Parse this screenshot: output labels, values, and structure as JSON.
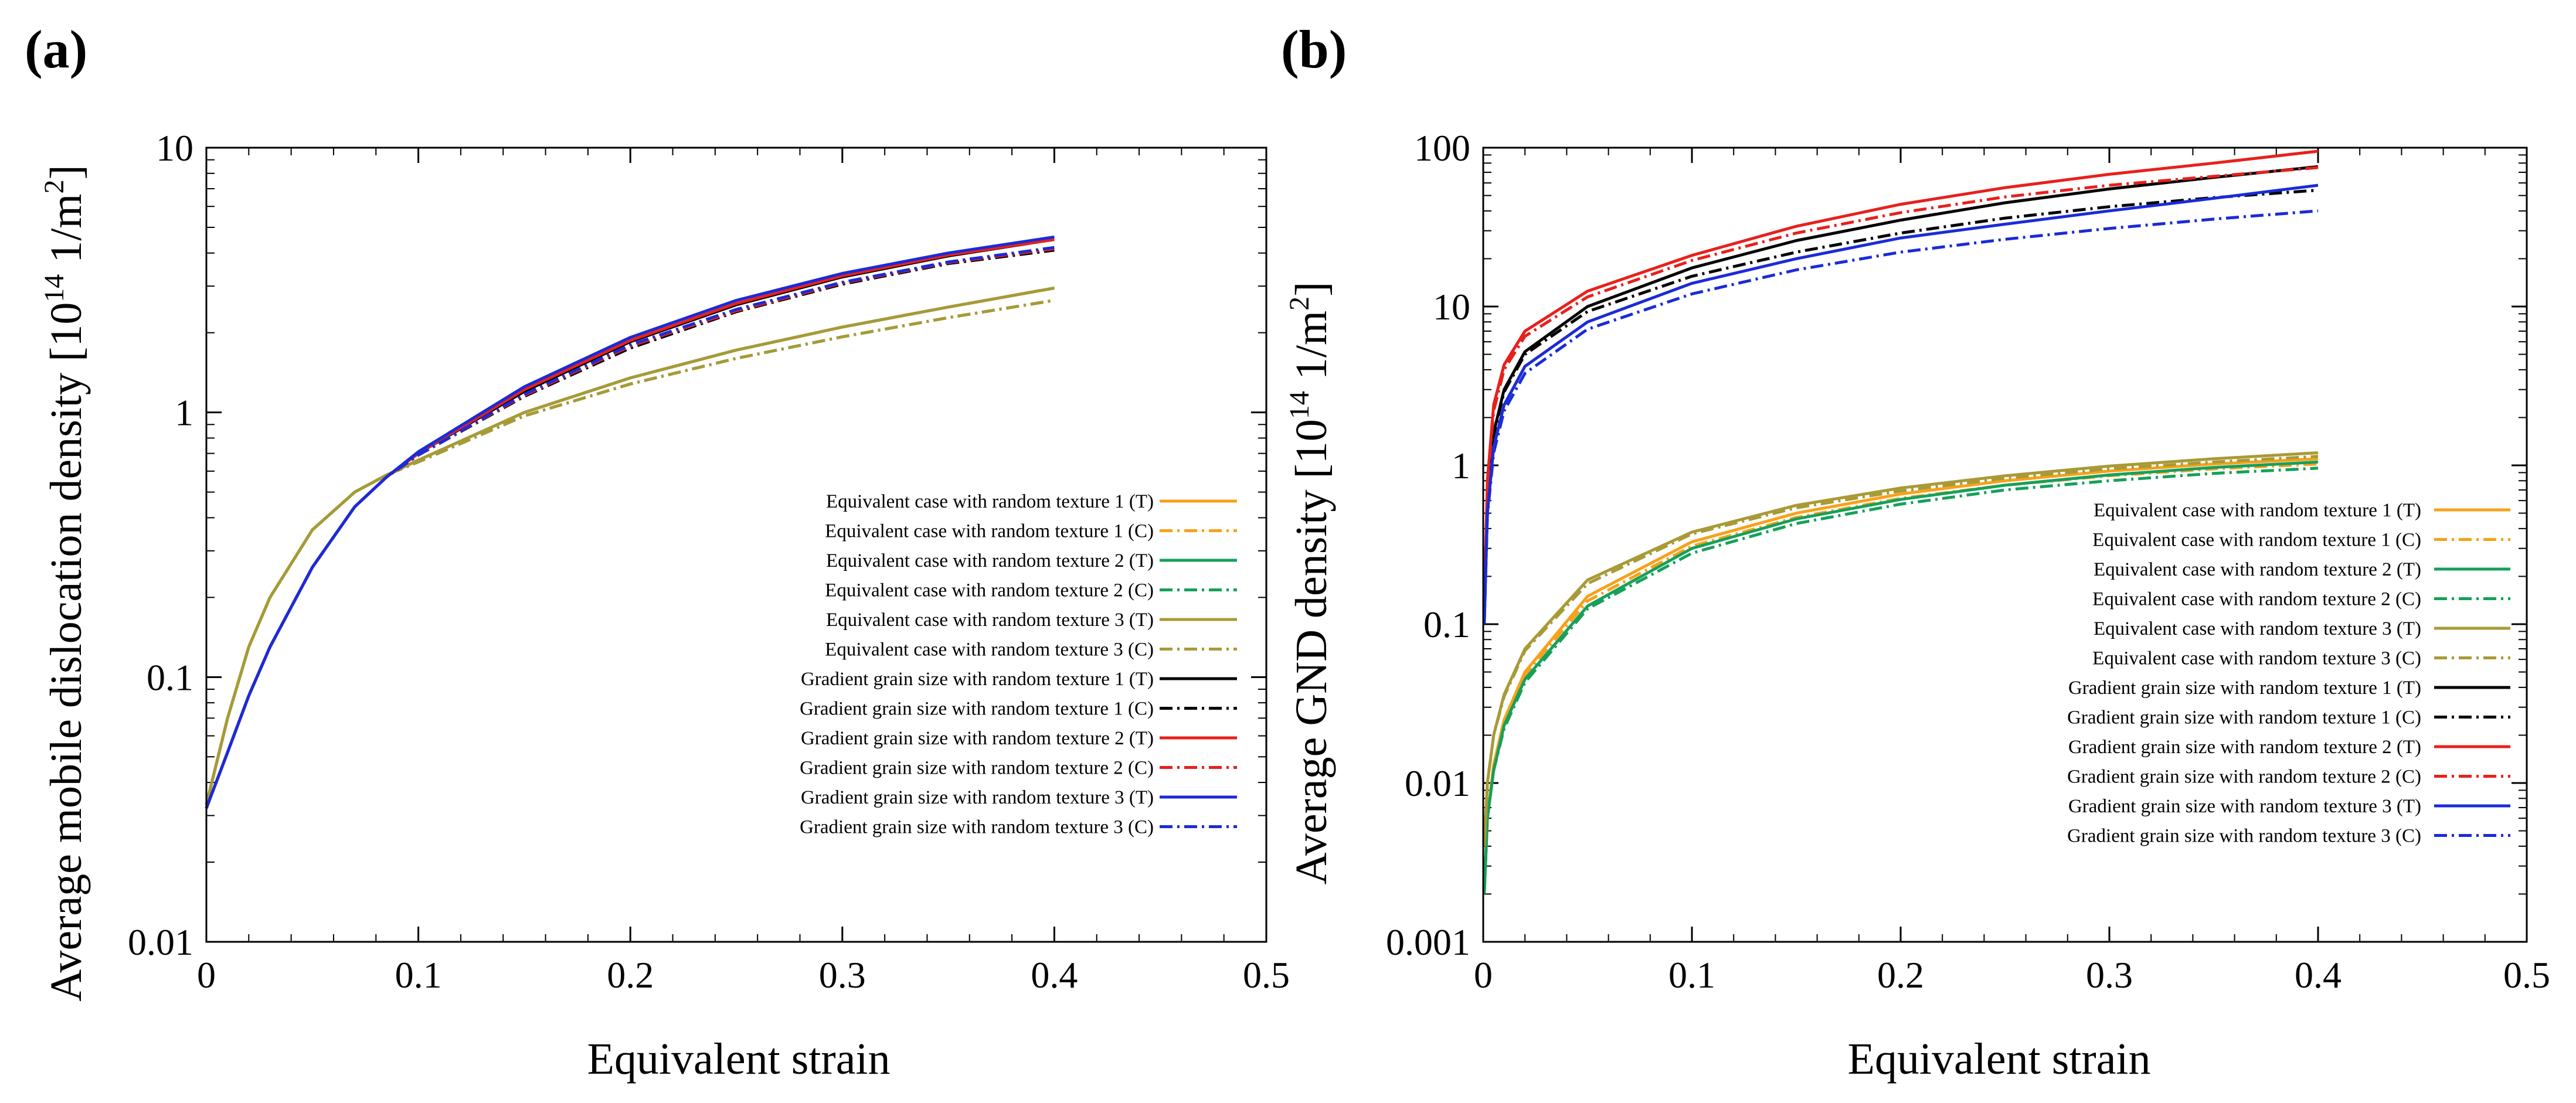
{
  "chart_data": [
    {
      "panel": "(a)",
      "type": "line",
      "title": "",
      "xlabel": "Equivalent strain",
      "ylabel_main": "Average mobile dislocation density [10",
      "ylabel_exp": "14",
      "ylabel_unit": " 1/m",
      "ylabel_sq": "2",
      "ylabel_end": "]",
      "xlim": [
        0,
        0.5
      ],
      "ylim": [
        0.01,
        10
      ],
      "yscale": "log",
      "xticks": [
        "0",
        "0.1",
        "0.2",
        "0.3",
        "0.4",
        "0.5"
      ],
      "yticks": [
        "0.01",
        "0.1",
        "1",
        "10"
      ],
      "legend_position": "bottom-right",
      "x": [
        0,
        0.01,
        0.02,
        0.03,
        0.05,
        0.07,
        0.085,
        0.1,
        0.15,
        0.2,
        0.25,
        0.3,
        0.35,
        0.4
      ],
      "series": [
        {
          "name": "Equivalent case with random texture 1 (T)",
          "color": "#f7a11a",
          "style": "solid",
          "values": [
            0.033,
            0.07,
            0.13,
            0.2,
            0.36,
            0.5,
            0.58,
            0.66,
            1.0,
            1.35,
            1.72,
            2.1,
            2.5,
            2.95
          ]
        },
        {
          "name": "Equivalent case with random texture 1 (C)",
          "color": "#f7a11a",
          "style": "dashdot",
          "values": [
            0.033,
            0.07,
            0.13,
            0.2,
            0.36,
            0.5,
            0.58,
            0.65,
            0.97,
            1.28,
            1.6,
            1.93,
            2.28,
            2.65
          ]
        },
        {
          "name": "Equivalent case with random texture 2 (T)",
          "color": "#16a05a",
          "style": "solid",
          "values": [
            0.033,
            0.07,
            0.13,
            0.2,
            0.36,
            0.5,
            0.58,
            0.66,
            1.0,
            1.35,
            1.72,
            2.1,
            2.5,
            2.95
          ]
        },
        {
          "name": "Equivalent case with random texture 2 (C)",
          "color": "#16a05a",
          "style": "dashdot",
          "values": [
            0.033,
            0.07,
            0.13,
            0.2,
            0.36,
            0.5,
            0.58,
            0.65,
            0.97,
            1.28,
            1.6,
            1.93,
            2.28,
            2.65
          ]
        },
        {
          "name": "Equivalent case with random texture 3 (T)",
          "color": "#a89a36",
          "style": "solid",
          "values": [
            0.033,
            0.07,
            0.13,
            0.2,
            0.36,
            0.5,
            0.58,
            0.66,
            1.0,
            1.35,
            1.72,
            2.1,
            2.5,
            2.95
          ]
        },
        {
          "name": "Equivalent case with random texture 3 (C)",
          "color": "#a89a36",
          "style": "dashdot",
          "values": [
            0.033,
            0.07,
            0.13,
            0.2,
            0.36,
            0.5,
            0.58,
            0.65,
            0.97,
            1.28,
            1.6,
            1.93,
            2.28,
            2.65
          ]
        },
        {
          "name": "Gradient grain size with random texture 1 (T)",
          "color": "#000000",
          "style": "solid",
          "values": [
            0.032,
            0.052,
            0.085,
            0.13,
            0.26,
            0.44,
            0.57,
            0.7,
            1.2,
            1.85,
            2.55,
            3.25,
            3.9,
            4.5
          ]
        },
        {
          "name": "Gradient grain size with random texture 1 (C)",
          "color": "#000000",
          "style": "dashdot",
          "values": [
            0.032,
            0.052,
            0.085,
            0.13,
            0.26,
            0.44,
            0.57,
            0.69,
            1.15,
            1.75,
            2.4,
            3.05,
            3.65,
            4.1
          ]
        },
        {
          "name": "Gradient grain size with random texture 2 (T)",
          "color": "#e8201c",
          "style": "solid",
          "values": [
            0.032,
            0.052,
            0.085,
            0.13,
            0.26,
            0.44,
            0.57,
            0.7,
            1.22,
            1.87,
            2.58,
            3.28,
            3.93,
            4.5
          ]
        },
        {
          "name": "Gradient grain size with random texture 2 (C)",
          "color": "#e8201c",
          "style": "dashdot",
          "values": [
            0.032,
            0.052,
            0.085,
            0.13,
            0.26,
            0.44,
            0.57,
            0.69,
            1.16,
            1.78,
            2.42,
            3.08,
            3.68,
            4.15
          ]
        },
        {
          "name": "Gradient grain size with random texture 3 (T)",
          "color": "#1a2bd8",
          "style": "solid",
          "values": [
            0.032,
            0.052,
            0.085,
            0.13,
            0.26,
            0.44,
            0.57,
            0.71,
            1.25,
            1.92,
            2.65,
            3.35,
            4.0,
            4.6
          ]
        },
        {
          "name": "Gradient grain size with random texture 3 (C)",
          "color": "#1a2bd8",
          "style": "dashdot",
          "values": [
            0.032,
            0.052,
            0.085,
            0.13,
            0.26,
            0.44,
            0.57,
            0.69,
            1.17,
            1.8,
            2.45,
            3.1,
            3.7,
            4.2
          ]
        }
      ]
    },
    {
      "panel": "(b)",
      "type": "line",
      "title": "",
      "xlabel": "Equivalent strain",
      "ylabel_main": "Average GND density [10",
      "ylabel_exp": "14",
      "ylabel_unit": " 1/m",
      "ylabel_sq": "2",
      "ylabel_end": "]",
      "xlim": [
        0,
        0.5
      ],
      "ylim": [
        0.001,
        100
      ],
      "yscale": "log",
      "xticks": [
        "0",
        "0.1",
        "0.2",
        "0.3",
        "0.4",
        "0.5"
      ],
      "yticks": [
        "0.001",
        "0.01",
        "0.1",
        "1",
        "10",
        "100"
      ],
      "legend_position": "bottom-right",
      "x": [
        0.0005,
        0.002,
        0.005,
        0.01,
        0.02,
        0.05,
        0.1,
        0.15,
        0.2,
        0.25,
        0.3,
        0.35,
        0.4
      ],
      "series": [
        {
          "name": "Equivalent case with random texture 1 (T)",
          "color": "#f7a11a",
          "style": "solid",
          "values": [
            0.002,
            0.006,
            0.013,
            0.025,
            0.05,
            0.15,
            0.33,
            0.5,
            0.66,
            0.8,
            0.92,
            1.02,
            1.1
          ]
        },
        {
          "name": "Equivalent case with random texture 1 (C)",
          "color": "#f7a11a",
          "style": "dashdot",
          "values": [
            0.002,
            0.006,
            0.013,
            0.024,
            0.048,
            0.14,
            0.31,
            0.47,
            0.62,
            0.75,
            0.86,
            0.95,
            1.02
          ]
        },
        {
          "name": "Equivalent case with random texture 2 (T)",
          "color": "#16a05a",
          "style": "solid",
          "values": [
            0.002,
            0.006,
            0.012,
            0.023,
            0.045,
            0.13,
            0.3,
            0.46,
            0.61,
            0.75,
            0.87,
            0.97,
            1.05
          ]
        },
        {
          "name": "Equivalent case with random texture 2 (C)",
          "color": "#16a05a",
          "style": "dashdot",
          "values": [
            0.002,
            0.006,
            0.012,
            0.022,
            0.043,
            0.125,
            0.28,
            0.43,
            0.57,
            0.7,
            0.8,
            0.89,
            0.96
          ]
        },
        {
          "name": "Equivalent case with random texture 3 (T)",
          "color": "#a89a36",
          "style": "solid",
          "values": [
            0.004,
            0.01,
            0.02,
            0.036,
            0.07,
            0.19,
            0.38,
            0.56,
            0.72,
            0.86,
            0.99,
            1.1,
            1.2
          ]
        },
        {
          "name": "Equivalent case with random texture 3 (C)",
          "color": "#a89a36",
          "style": "dashdot",
          "values": [
            0.004,
            0.01,
            0.02,
            0.035,
            0.068,
            0.18,
            0.37,
            0.54,
            0.69,
            0.83,
            0.95,
            1.05,
            1.14
          ]
        },
        {
          "name": "Gradient grain size with random texture 1 (T)",
          "color": "#000000",
          "style": "solid",
          "values": [
            0.12,
            0.6,
            1.6,
            3.0,
            5.2,
            10.0,
            17.5,
            26.0,
            35.0,
            45.0,
            55.0,
            65.0,
            76.0
          ]
        },
        {
          "name": "Gradient grain size with random texture 1 (C)",
          "color": "#000000",
          "style": "dashdot",
          "values": [
            0.12,
            0.6,
            1.55,
            2.9,
            5.0,
            9.3,
            15.5,
            22.0,
            29.0,
            36.0,
            42.5,
            48.5,
            54.0
          ]
        },
        {
          "name": "Gradient grain size with random texture 2 (T)",
          "color": "#e8201c",
          "style": "solid",
          "values": [
            0.13,
            0.8,
            2.4,
            4.3,
            7.0,
            12.5,
            21.0,
            32.0,
            44.0,
            56.0,
            68.0,
            80.0,
            95.0
          ]
        },
        {
          "name": "Gradient grain size with random texture 2 (C)",
          "color": "#e8201c",
          "style": "dashdot",
          "values": [
            0.13,
            0.75,
            2.2,
            4.0,
            6.5,
            11.5,
            19.5,
            29.0,
            39.0,
            49.0,
            58.0,
            66.0,
            75.0
          ]
        },
        {
          "name": "Gradient grain size with random texture 3 (T)",
          "color": "#1a2bd8",
          "style": "solid",
          "values": [
            0.1,
            0.5,
            1.3,
            2.4,
            4.2,
            8.0,
            14.0,
            20.0,
            27.0,
            33.0,
            40.0,
            48.0,
            58.0
          ]
        },
        {
          "name": "Gradient grain size with random texture 3 (C)",
          "color": "#1a2bd8",
          "style": "dashdot",
          "values": [
            0.1,
            0.48,
            1.2,
            2.2,
            3.8,
            7.2,
            12.0,
            17.0,
            22.0,
            26.5,
            31.0,
            35.5,
            40.0
          ]
        }
      ]
    }
  ]
}
